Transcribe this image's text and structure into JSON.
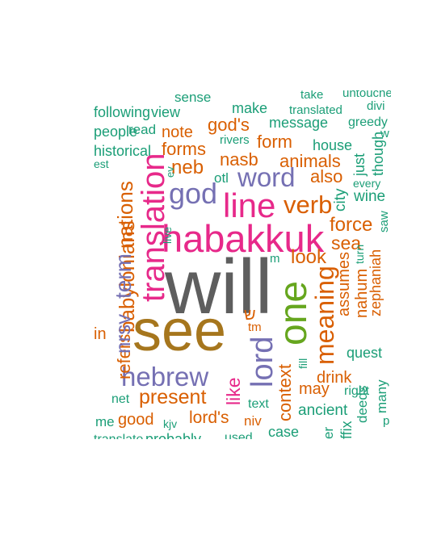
{
  "word_cloud": {
    "colors": {
      "teal": "#1b9e77",
      "orange": "#d95f02",
      "purple": "#7570b3",
      "magenta": "#e7298a",
      "green": "#66a61e",
      "gold": "#a6761d",
      "gray": "#666666"
    },
    "words": [
      {
        "text": "will"
      },
      {
        "text": "see"
      },
      {
        "text": "habakkuk"
      },
      {
        "text": "one"
      },
      {
        "text": "translation"
      },
      {
        "text": "line"
      },
      {
        "text": "hebrew"
      },
      {
        "text": "lord"
      },
      {
        "text": "word"
      },
      {
        "text": "god"
      },
      {
        "text": "nrsv"
      },
      {
        "text": "term"
      },
      {
        "text": "nations"
      },
      {
        "text": "babylonians"
      },
      {
        "text": "verb"
      },
      {
        "text": "meaning"
      },
      {
        "text": "present"
      },
      {
        "text": "like"
      },
      {
        "text": "context"
      },
      {
        "text": "nasb"
      },
      {
        "text": "neb"
      },
      {
        "text": "forms"
      },
      {
        "text": "god's"
      },
      {
        "text": "lord's"
      },
      {
        "text": "look"
      },
      {
        "text": "assumes"
      },
      {
        "text": "nahum"
      },
      {
        "text": "zephaniah"
      },
      {
        "text": "force"
      },
      {
        "text": "sea"
      },
      {
        "text": "also"
      },
      {
        "text": "form"
      },
      {
        "text": "animals"
      },
      {
        "text": "note"
      },
      {
        "text": "drink"
      },
      {
        "text": "may"
      },
      {
        "text": "good"
      },
      {
        "text": "house"
      },
      {
        "text": "city"
      },
      {
        "text": "wine"
      },
      {
        "text": "message"
      },
      {
        "text": "make"
      },
      {
        "text": "sense"
      },
      {
        "text": "translated"
      },
      {
        "text": "following"
      },
      {
        "text": "view"
      },
      {
        "text": "people"
      },
      {
        "text": "read"
      },
      {
        "text": "historical"
      },
      {
        "text": "rivers"
      },
      {
        "text": "greedy"
      },
      {
        "text": "just"
      },
      {
        "text": "though"
      },
      {
        "text": "otl"
      },
      {
        "text": "quest"
      },
      {
        "text": "refers"
      },
      {
        "text": "net"
      },
      {
        "text": "ancient"
      },
      {
        "text": "text"
      },
      {
        "text": "right"
      },
      {
        "text": "deeds"
      },
      {
        "text": "many"
      },
      {
        "text": "niv"
      },
      {
        "text": "kjv"
      },
      {
        "text": "case"
      },
      {
        "text": "used"
      },
      {
        "text": "probably"
      },
      {
        "text": "saw"
      },
      {
        "text": "turn"
      },
      {
        "text": "fill"
      },
      {
        "text": "divi"
      },
      {
        "text": "take"
      },
      {
        "text": "every"
      },
      {
        "text": "live"
      },
      {
        "text": "translate"
      },
      {
        "text": "me"
      },
      {
        "text": "est"
      },
      {
        "text": "ffix"
      },
      {
        "text": "in"
      },
      {
        "text": "er"
      },
      {
        "text": "tm"
      },
      {
        "text": "ev"
      },
      {
        "text": "ש"
      },
      {
        "text": "m"
      },
      {
        "text": "p"
      },
      {
        "text": "w"
      },
      {
        "text": "untouched"
      }
    ]
  }
}
